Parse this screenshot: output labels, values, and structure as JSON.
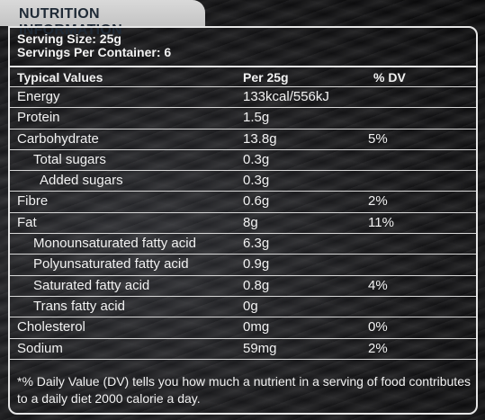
{
  "title": "NUTRITION INFORMATION",
  "serving": {
    "size": "Serving Size: 25g",
    "per_container": "Servings Per Container: 6"
  },
  "table": {
    "headers": [
      "Typical Values",
      "Per 25g",
      "% DV"
    ],
    "rows": [
      {
        "name": "Energy",
        "amount": "133kcal/556kJ",
        "dv": "",
        "indent": 0
      },
      {
        "name": "Protein",
        "amount": "1.5g",
        "dv": "",
        "indent": 0
      },
      {
        "name": "Carbohydrate",
        "amount": "13.8g",
        "dv": "5%",
        "indent": 0
      },
      {
        "name": "Total sugars",
        "amount": "0.3g",
        "dv": "",
        "indent": 1
      },
      {
        "name": "Added sugars",
        "amount": "0.3g",
        "dv": "",
        "indent": 2
      },
      {
        "name": "Fibre",
        "amount": "0.6g",
        "dv": "2%",
        "indent": 0
      },
      {
        "name": "Fat",
        "amount": "8g",
        "dv": "11%",
        "indent": 0
      },
      {
        "name": "Monounsaturated fatty acid",
        "amount": "6.3g",
        "dv": "",
        "indent": 1
      },
      {
        "name": "Polyunsaturated fatty acid",
        "amount": "0.9g",
        "dv": "",
        "indent": 1
      },
      {
        "name": "Saturated fatty acid",
        "amount": "0.8g",
        "dv": "4%",
        "indent": 1
      },
      {
        "name": "Trans fatty acid",
        "amount": "0g",
        "dv": "",
        "indent": 1
      },
      {
        "name": "Cholesterol",
        "amount": "0mg",
        "dv": "0%",
        "indent": 0
      },
      {
        "name": "Sodium",
        "amount": "59mg",
        "dv": "2%",
        "indent": 0
      }
    ]
  },
  "footnote": "*% Daily Value (DV) tells you how much a nutrient in a serving of food contributes to a daily diet 2000 calorie a day."
}
